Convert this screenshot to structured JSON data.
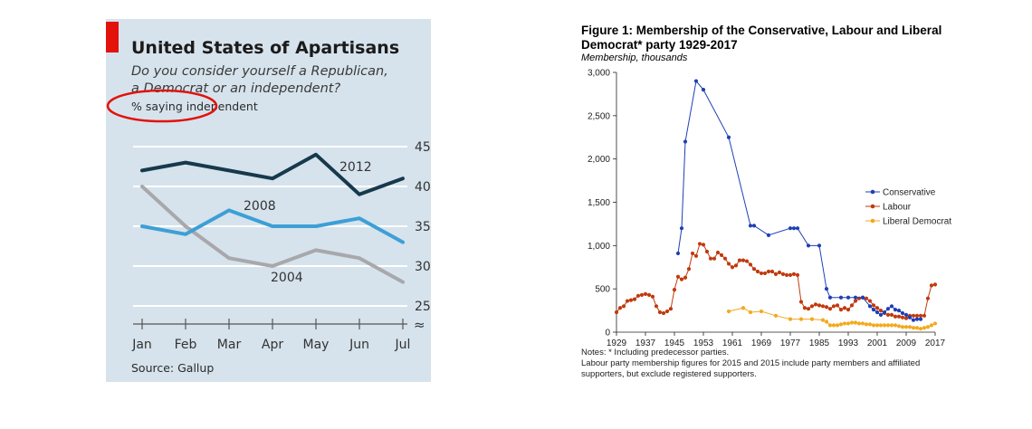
{
  "chart_data": [
    {
      "type": "line",
      "title": "United States of Apartisans",
      "subtitle_line1": "Do you consider yourself a Republican,",
      "subtitle_line2": "a Democrat or an independent?",
      "unit_note": "% saying independent",
      "source": "Source: Gallup",
      "categories": [
        "Jan",
        "Feb",
        "Mar",
        "Apr",
        "May",
        "Jun",
        "Jul"
      ],
      "series": [
        {
          "name": "2012",
          "values": [
            42,
            43,
            42,
            41,
            44,
            39,
            41
          ],
          "color": "#17394d"
        },
        {
          "name": "2008",
          "values": [
            35,
            34,
            37,
            35,
            35,
            36,
            33
          ],
          "color": "#3d9fd6"
        },
        {
          "name": "2004",
          "values": [
            40,
            35,
            31,
            30,
            32,
            31,
            28
          ],
          "color": "#a8a8ac"
        }
      ],
      "yticks": [
        25,
        30,
        35,
        40,
        45
      ],
      "ylim": [
        25,
        45
      ],
      "axis_break": "≈",
      "grid": true
    },
    {
      "type": "line",
      "title_line1": "Figure 1: Membership of the Conservative, Labour and Liberal",
      "title_line2": "Democrat* party 1929-2017",
      "ylabel": "Membership, thousands",
      "xlim": [
        1929,
        2017
      ],
      "ylim": [
        0,
        3000
      ],
      "xticks": [
        1929,
        1937,
        1945,
        1953,
        1961,
        1969,
        1977,
        1985,
        1993,
        2001,
        2009,
        2017
      ],
      "yticks": [
        0,
        500,
        1000,
        1500,
        2000,
        2500,
        3000
      ],
      "ytick_labels": [
        "0",
        "500",
        "1,000",
        "1,500",
        "2,000",
        "2,500",
        "3,000"
      ],
      "legend_position": "right",
      "series": [
        {
          "name": "Conservative",
          "color": "#1f3fb5",
          "points": [
            [
              1946,
              910
            ],
            [
              1947,
              1200
            ],
            [
              1948,
              2200
            ],
            [
              1951,
              2900
            ],
            [
              1953,
              2800
            ],
            [
              1960,
              2250
            ],
            [
              1966,
              1230
            ],
            [
              1967,
              1230
            ],
            [
              1971,
              1120
            ],
            [
              1977,
              1200
            ],
            [
              1978,
              1200
            ],
            [
              1979,
              1200
            ],
            [
              1982,
              1000
            ],
            [
              1985,
              1000
            ],
            [
              1987,
              500
            ],
            [
              1988,
              400
            ],
            [
              1991,
              400
            ],
            [
              1993,
              400
            ],
            [
              1995,
              400
            ],
            [
              1997,
              400
            ],
            [
              1999,
              300
            ],
            [
              2000,
              260
            ],
            [
              2001,
              230
            ],
            [
              2002,
              200
            ],
            [
              2003,
              230
            ],
            [
              2004,
              270
            ],
            [
              2005,
              300
            ],
            [
              2006,
              260
            ],
            [
              2007,
              250
            ],
            [
              2008,
              220
            ],
            [
              2009,
              200
            ],
            [
              2010,
              170
            ],
            [
              2011,
              140
            ],
            [
              2012,
              150
            ],
            [
              2013,
              150
            ]
          ]
        },
        {
          "name": "Labour",
          "color": "#c03a0e",
          "points": [
            [
              1929,
              230
            ],
            [
              1930,
              280
            ],
            [
              1931,
              300
            ],
            [
              1932,
              360
            ],
            [
              1933,
              370
            ],
            [
              1934,
              380
            ],
            [
              1935,
              420
            ],
            [
              1936,
              430
            ],
            [
              1937,
              440
            ],
            [
              1938,
              430
            ],
            [
              1939,
              410
            ],
            [
              1940,
              300
            ],
            [
              1941,
              230
            ],
            [
              1942,
              220
            ],
            [
              1943,
              240
            ],
            [
              1944,
              270
            ],
            [
              1945,
              490
            ],
            [
              1946,
              640
            ],
            [
              1947,
              610
            ],
            [
              1948,
              630
            ],
            [
              1949,
              730
            ],
            [
              1950,
              910
            ],
            [
              1951,
              880
            ],
            [
              1952,
              1020
            ],
            [
              1953,
              1010
            ],
            [
              1954,
              930
            ],
            [
              1955,
              850
            ],
            [
              1956,
              850
            ],
            [
              1957,
              920
            ],
            [
              1958,
              890
            ],
            [
              1959,
              850
            ],
            [
              1960,
              790
            ],
            [
              1961,
              750
            ],
            [
              1962,
              770
            ],
            [
              1963,
              830
            ],
            [
              1964,
              830
            ],
            [
              1965,
              820
            ],
            [
              1966,
              780
            ],
            [
              1967,
              730
            ],
            [
              1968,
              700
            ],
            [
              1969,
              680
            ],
            [
              1970,
              680
            ],
            [
              1971,
              700
            ],
            [
              1972,
              700
            ],
            [
              1973,
              670
            ],
            [
              1974,
              690
            ],
            [
              1975,
              670
            ],
            [
              1976,
              660
            ],
            [
              1977,
              660
            ],
            [
              1978,
              670
            ],
            [
              1979,
              660
            ],
            [
              1980,
              350
            ],
            [
              1981,
              280
            ],
            [
              1982,
              270
            ],
            [
              1983,
              300
            ],
            [
              1984,
              320
            ],
            [
              1985,
              310
            ],
            [
              1986,
              300
            ],
            [
              1987,
              290
            ],
            [
              1988,
              270
            ],
            [
              1989,
              300
            ],
            [
              1990,
              310
            ],
            [
              1991,
              260
            ],
            [
              1992,
              280
            ],
            [
              1993,
              260
            ],
            [
              1994,
              310
            ],
            [
              1995,
              360
            ],
            [
              1996,
              390
            ],
            [
              1997,
              400
            ],
            [
              1998,
              390
            ],
            [
              1999,
              360
            ],
            [
              2000,
              310
            ],
            [
              2001,
              280
            ],
            [
              2002,
              250
            ],
            [
              2003,
              220
            ],
            [
              2004,
              200
            ],
            [
              2005,
              200
            ],
            [
              2006,
              180
            ],
            [
              2007,
              180
            ],
            [
              2008,
              170
            ],
            [
              2009,
              160
            ],
            [
              2010,
              190
            ],
            [
              2011,
              190
            ],
            [
              2012,
              190
            ],
            [
              2013,
              190
            ],
            [
              2014,
              190
            ],
            [
              2015,
              390
            ],
            [
              2016,
              540
            ],
            [
              2017,
              550
            ]
          ]
        },
        {
          "name": "Liberal Democrat",
          "color": "#f2a91e",
          "points": [
            [
              1960,
              240
            ],
            [
              1964,
              280
            ],
            [
              1966,
              230
            ],
            [
              1969,
              240
            ],
            [
              1973,
              190
            ],
            [
              1977,
              150
            ],
            [
              1980,
              150
            ],
            [
              1983,
              150
            ],
            [
              1986,
              140
            ],
            [
              1987,
              120
            ],
            [
              1988,
              80
            ],
            [
              1989,
              80
            ],
            [
              1990,
              80
            ],
            [
              1991,
              90
            ],
            [
              1992,
              100
            ],
            [
              1993,
              100
            ],
            [
              1994,
              110
            ],
            [
              1995,
              110
            ],
            [
              1996,
              100
            ],
            [
              1997,
              100
            ],
            [
              1998,
              90
            ],
            [
              1999,
              90
            ],
            [
              2000,
              80
            ],
            [
              2001,
              80
            ],
            [
              2002,
              80
            ],
            [
              2003,
              80
            ],
            [
              2004,
              80
            ],
            [
              2005,
              80
            ],
            [
              2006,
              80
            ],
            [
              2007,
              70
            ],
            [
              2008,
              60
            ],
            [
              2009,
              60
            ],
            [
              2010,
              60
            ],
            [
              2011,
              50
            ],
            [
              2012,
              50
            ],
            [
              2013,
              40
            ],
            [
              2014,
              50
            ],
            [
              2015,
              60
            ],
            [
              2016,
              80
            ],
            [
              2017,
              100
            ]
          ]
        }
      ],
      "notes_line1": "Notes: * Including predecessor parties.",
      "notes_line2": "Labour party membership figures for 2015 and 2015 include party members and affiliated",
      "notes_line3": "supporters, but exclude registered supporters."
    }
  ]
}
